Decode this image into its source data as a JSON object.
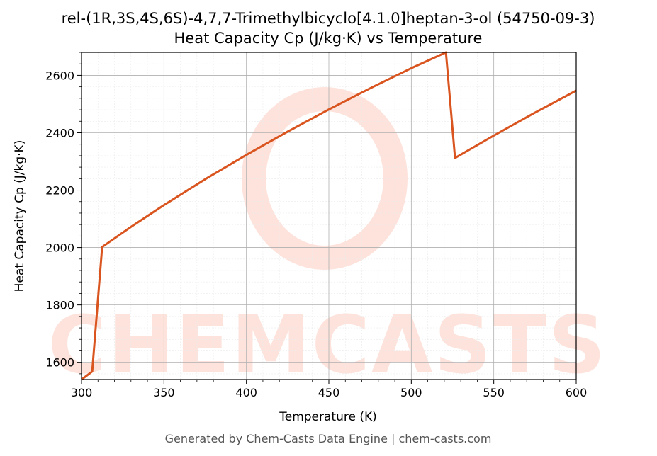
{
  "chart_data": {
    "type": "line",
    "title": "rel-(1R,3S,4S,6S)-4,7,7-Trimethylbicyclo[4.1.0]heptan-3-ol (54750-09-3)",
    "subtitle": "Heat Capacity Cp (J/kg·K) vs Temperature",
    "xlabel": "Temperature (K)",
    "ylabel": "Heat Capacity Cp (J/kg·K)",
    "xlim": [
      300,
      600
    ],
    "ylim": [
      1540,
      2680
    ],
    "xticks": [
      300,
      350,
      400,
      450,
      500,
      550,
      600
    ],
    "yticks": [
      1600,
      1800,
      2000,
      2200,
      2400,
      2600
    ],
    "grid": true,
    "line_color": "#d9541e",
    "series": [
      {
        "x": [
          300,
          306.5,
          312.5,
          330,
          350,
          375,
          400,
          425,
          450,
          475,
          500,
          521,
          526.5,
          550,
          575,
          600
        ],
        "values": [
          1540,
          1568,
          2002,
          2072,
          2148,
          2238,
          2323,
          2404,
          2481,
          2555,
          2625,
          2680,
          2312,
          2390,
          2470,
          2547
        ]
      }
    ]
  },
  "watermark": {
    "text": "CHEMCASTS",
    "color": "#fde3dc"
  },
  "footer": "Generated by Chem-Casts Data Engine | chem-casts.com"
}
